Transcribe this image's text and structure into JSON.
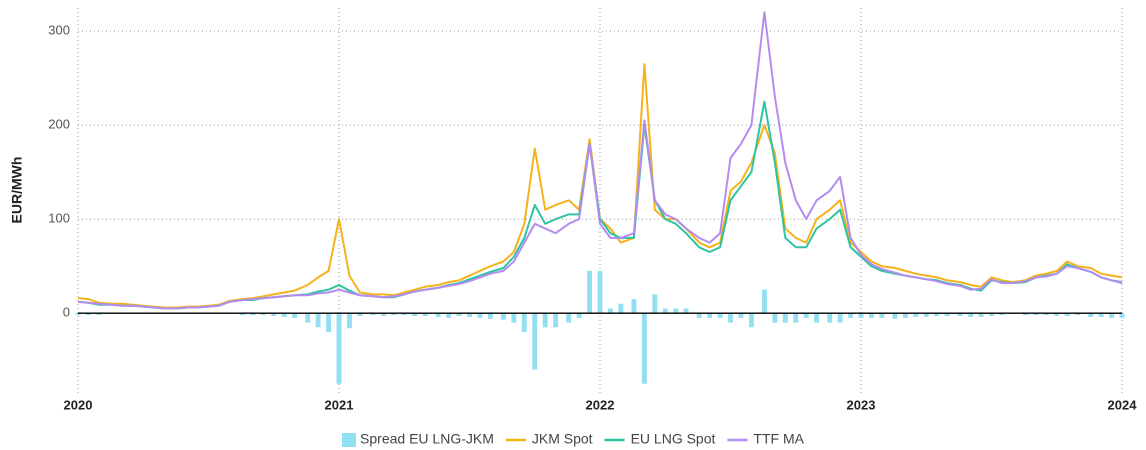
{
  "chart_data": {
    "type": "line",
    "y_label": "EUR/MWh",
    "x": [
      2020,
      2020.04,
      2020.08,
      2020.13,
      2020.17,
      2020.21,
      2020.25,
      2020.29,
      2020.33,
      2020.38,
      2020.42,
      2020.46,
      2020.5,
      2020.54,
      2020.58,
      2020.63,
      2020.67,
      2020.71,
      2020.75,
      2020.79,
      2020.83,
      2020.88,
      2020.92,
      2020.96,
      2021,
      2021.04,
      2021.08,
      2021.13,
      2021.17,
      2021.21,
      2021.25,
      2021.29,
      2021.33,
      2021.38,
      2021.42,
      2021.46,
      2021.5,
      2021.54,
      2021.58,
      2021.63,
      2021.67,
      2021.71,
      2021.75,
      2021.79,
      2021.83,
      2021.88,
      2021.92,
      2021.96,
      2022,
      2022.04,
      2022.08,
      2022.13,
      2022.17,
      2022.21,
      2022.25,
      2022.29,
      2022.33,
      2022.38,
      2022.42,
      2022.46,
      2022.5,
      2022.54,
      2022.58,
      2022.63,
      2022.67,
      2022.71,
      2022.75,
      2022.79,
      2022.83,
      2022.88,
      2022.92,
      2022.96,
      2023,
      2023.04,
      2023.08,
      2023.13,
      2023.17,
      2023.21,
      2023.25,
      2023.29,
      2023.33,
      2023.38,
      2023.42,
      2023.46,
      2023.5,
      2023.54,
      2023.58,
      2023.63,
      2023.67,
      2023.71,
      2023.75,
      2023.79,
      2023.83,
      2023.88,
      2023.92,
      2023.96,
      2024
    ],
    "series": [
      {
        "name": "Spread EU LNG-JKM",
        "kind": "bar",
        "color": "#93dff2",
        "values": [
          -2,
          -2,
          -2,
          -1,
          -1,
          -1,
          -1,
          -1,
          -1,
          -1,
          -1,
          -1,
          -1,
          -1,
          -1,
          -2,
          -2,
          -2,
          -3,
          -4,
          -5,
          -10,
          -15,
          -20,
          -75,
          -16,
          -3,
          -2,
          -3,
          -2,
          -2,
          -3,
          -3,
          -4,
          -5,
          -3,
          -4,
          -5,
          -6,
          -7,
          -10,
          -20,
          -60,
          -15,
          -15,
          -10,
          -5,
          45,
          45,
          5,
          10,
          15,
          -75,
          20,
          5,
          5,
          5,
          -5,
          -5,
          -5,
          -10,
          -5,
          -15,
          25,
          -10,
          -10,
          -10,
          -5,
          -10,
          -10,
          -10,
          -5,
          -5,
          -5,
          -5,
          -6,
          -5,
          -4,
          -4,
          -3,
          -3,
          -3,
          -4,
          -4,
          -3,
          -2,
          -1,
          -2,
          -2,
          -2,
          -3,
          -3,
          -2,
          -4,
          -4,
          -5,
          -5
        ]
      },
      {
        "name": "JKM Spot",
        "kind": "line",
        "color": "#f5b21a",
        "values": [
          16,
          15,
          11,
          10,
          10,
          9,
          8,
          7,
          6,
          6,
          7,
          7,
          8,
          9,
          13,
          15,
          16,
          18,
          20,
          22,
          24,
          30,
          38,
          45,
          100,
          40,
          22,
          20,
          20,
          19,
          22,
          25,
          28,
          30,
          33,
          35,
          40,
          45,
          50,
          55,
          65,
          95,
          175,
          110,
          115,
          120,
          110,
          185,
          100,
          90,
          75,
          80,
          265,
          110,
          100,
          100,
          90,
          75,
          70,
          75,
          130,
          140,
          160,
          200,
          170,
          90,
          80,
          75,
          100,
          110,
          120,
          75,
          65,
          55,
          50,
          48,
          45,
          42,
          40,
          38,
          35,
          33,
          30,
          28,
          38,
          35,
          33,
          35,
          40,
          42,
          45,
          55,
          50,
          48,
          42,
          40,
          38
        ]
      },
      {
        "name": "EU LNG Spot",
        "kind": "line",
        "color": "#2ec4a0",
        "values": [
          12,
          11,
          9,
          9,
          8,
          8,
          7,
          6,
          5,
          5,
          6,
          6,
          7,
          8,
          12,
          14,
          14,
          16,
          17,
          18,
          19,
          20,
          23,
          25,
          30,
          24,
          19,
          18,
          17,
          17,
          20,
          23,
          25,
          27,
          30,
          32,
          36,
          40,
          44,
          48,
          60,
          80,
          115,
          95,
          100,
          105,
          105,
          180,
          100,
          85,
          80,
          80,
          200,
          120,
          100,
          95,
          85,
          70,
          65,
          70,
          120,
          135,
          150,
          225,
          160,
          80,
          70,
          70,
          90,
          100,
          110,
          70,
          60,
          50,
          45,
          42,
          40,
          38,
          36,
          35,
          32,
          30,
          26,
          24,
          35,
          33,
          32,
          33,
          38,
          40,
          42,
          52,
          48,
          44,
          38,
          35,
          33
        ]
      },
      {
        "name": "TTF MA",
        "kind": "line",
        "color": "#b48cf0",
        "values": [
          12,
          11,
          10,
          9,
          8,
          8,
          7,
          6,
          5,
          5,
          6,
          6,
          7,
          8,
          12,
          14,
          15,
          16,
          17,
          18,
          19,
          19,
          21,
          22,
          25,
          22,
          19,
          18,
          17,
          18,
          20,
          23,
          25,
          27,
          29,
          31,
          34,
          38,
          42,
          45,
          55,
          75,
          95,
          90,
          85,
          95,
          100,
          180,
          95,
          80,
          80,
          85,
          205,
          120,
          105,
          100,
          90,
          80,
          75,
          85,
          165,
          180,
          200,
          320,
          230,
          160,
          120,
          100,
          120,
          130,
          145,
          80,
          62,
          52,
          47,
          43,
          40,
          38,
          36,
          34,
          31,
          29,
          25,
          26,
          36,
          32,
          32,
          34,
          38,
          39,
          42,
          50,
          48,
          44,
          38,
          35,
          32
        ]
      }
    ],
    "xlim": [
      2020,
      2024
    ],
    "xticks": [
      2020,
      2021,
      2022,
      2023,
      2024
    ],
    "ylim": [
      -87,
      333
    ],
    "yticks": [
      0,
      100,
      200,
      300
    ],
    "grid": true,
    "legend": "bottom"
  }
}
